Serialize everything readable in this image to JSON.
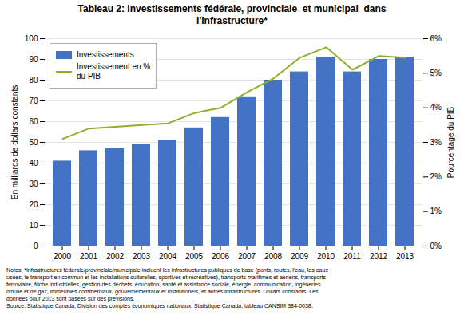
{
  "chart_data": {
    "type": "bar",
    "title": "Tableau 2: Investissements fédérale, provinciale  et municipal  dans\nl'infrastructure*",
    "categories": [
      "2000",
      "2001",
      "2002",
      "2003",
      "2004",
      "2005",
      "2006",
      "2007",
      "2008",
      "2009",
      "2010",
      "2011",
      "2012",
      "2013"
    ],
    "series": [
      {
        "name": "Investissements",
        "type": "bar",
        "color": "#4472C4",
        "values": [
          41,
          46,
          47,
          49,
          51,
          57,
          62,
          72,
          80,
          84,
          91,
          84,
          90,
          91
        ]
      },
      {
        "name": "Investissement en %\ndu PIB",
        "type": "line",
        "color": "#8DB030",
        "axis": "y2",
        "values": [
          3.1,
          3.4,
          3.45,
          3.5,
          3.55,
          3.85,
          4.0,
          4.45,
          4.85,
          5.45,
          5.75,
          5.1,
          5.5,
          5.45
        ]
      }
    ],
    "ylabel": "En milliards de dollars constants",
    "y2label": "Pourcentage du PIB",
    "ylim": [
      0,
      100
    ],
    "yticks": [
      0,
      10,
      20,
      30,
      40,
      50,
      60,
      70,
      80,
      90,
      100
    ],
    "y2lim": [
      0,
      6
    ],
    "y2ticks": [
      {
        "value": 0,
        "label": "0%"
      },
      {
        "value": 1,
        "label": "1%"
      },
      {
        "value": 2,
        "label": "2%"
      },
      {
        "value": 3,
        "label": "3%"
      },
      {
        "value": 4,
        "label": "4%"
      },
      {
        "value": 5,
        "label": "5%"
      },
      {
        "value": 6,
        "label": "6%"
      }
    ],
    "grid": true,
    "legend": "upper left",
    "annotations": [
      "Notes: *Infrastructures fédérale/provinciale/municipale incluent les infrastructures publiques de base (ponts, routes, l'eau, les eaux",
      "usées, le transport en commun et les installations culturelles, sportives et récréatives), transports maritimes et aeriens, transports",
      "ferroviaire, friche industrielles, gestion des déchets, éducation, santé et assistance sociale, énergie, communication, ingéneries",
      "d'huile et de gaz, immeubles commerciaux, gouvernementaux et institutionels, et autres infrastructures. Dollars constants. Les",
      "données pour 2013 sont basées sur des prévisions.",
      "Source: Statistique Canada, Division des comptes économiques nationaux; Statistique Canada, tableau CANSIM 384-0038."
    ]
  }
}
